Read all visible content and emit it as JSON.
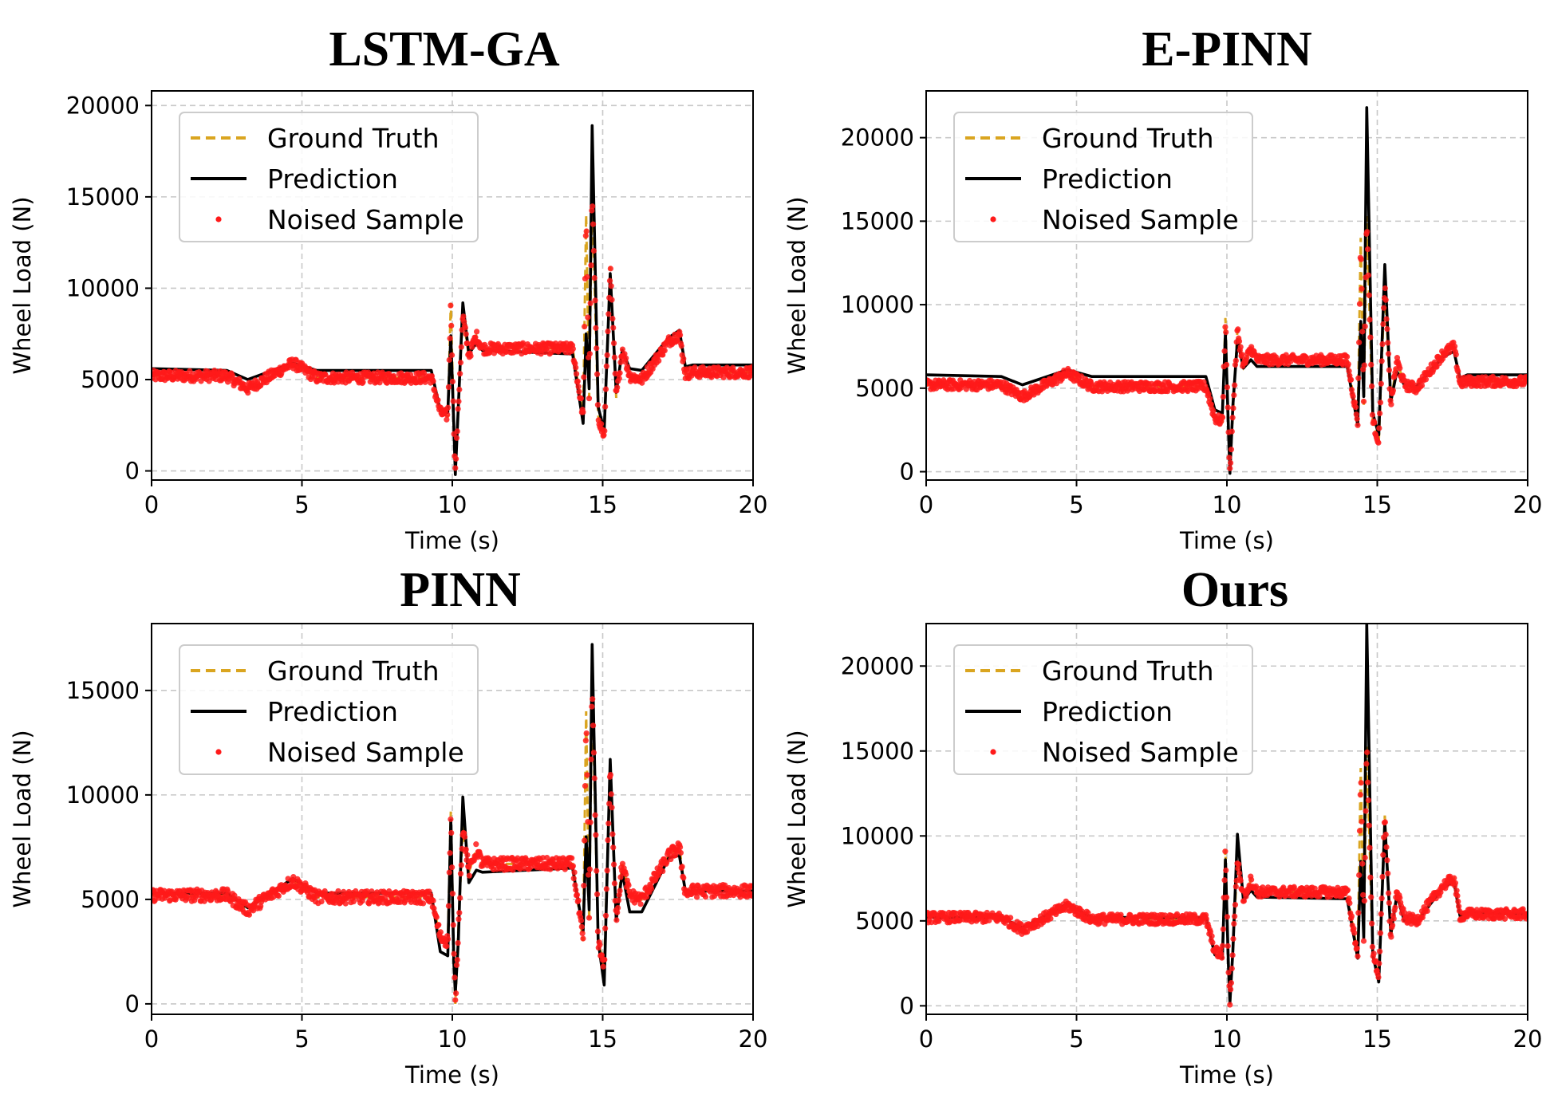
{
  "colors": {
    "ground_truth": "#DAA520",
    "prediction": "#000000",
    "noised_sample": "#FF1A1A",
    "grid": "#c8c8c8"
  },
  "chart_data": [
    {
      "type": "line",
      "title": "LSTM-GA",
      "xlabel": "Time (s)",
      "ylabel": "Wheel Load (N)",
      "xlim": [
        0,
        20
      ],
      "ylim": [
        -500,
        20800
      ],
      "xticks": [
        0,
        5,
        10,
        15,
        20
      ],
      "yticks": [
        0,
        5000,
        10000,
        15000,
        20000
      ],
      "grid": true,
      "legend": {
        "placement": "upper-left",
        "entries": [
          "Ground Truth",
          "Prediction",
          "Noised Sample"
        ]
      },
      "series": [
        {
          "name": "Ground Truth",
          "style": "dashed",
          "x": [
            0,
            2.5,
            3.2,
            4.7,
            5.5,
            9.3,
            9.6,
            9.85,
            9.95,
            10.05,
            10.1,
            10.2,
            10.35,
            10.55,
            10.8,
            11,
            14,
            14.35,
            14.45,
            14.55,
            14.65,
            14.85,
            15.05,
            15.25,
            15.45,
            15.65,
            15.9,
            16.3,
            17.2,
            17.55,
            17.75,
            18,
            20
          ],
          "y": [
            5200,
            5200,
            4500,
            5900,
            5100,
            5100,
            3200,
            3000,
            9200,
            2500,
            0,
            3500,
            8500,
            6300,
            7400,
            6700,
            6700,
            3000,
            14000,
            4000,
            15300,
            3000,
            1800,
            11200,
            4000,
            6700,
            5200,
            5000,
            7100,
            7500,
            5300,
            5400,
            5400
          ]
        },
        {
          "name": "Prediction",
          "style": "solid",
          "x": [
            0,
            2.5,
            3.2,
            4.7,
            5.5,
            9.3,
            9.6,
            9.85,
            9.95,
            10.05,
            10.1,
            10.2,
            10.35,
            10.55,
            10.8,
            11,
            14,
            14.35,
            14.45,
            14.55,
            14.65,
            14.85,
            15.05,
            15.25,
            15.45,
            15.65,
            15.9,
            16.3,
            17.2,
            17.55,
            17.75,
            18,
            20
          ],
          "y": [
            5600,
            5500,
            5000,
            5900,
            5500,
            5500,
            3300,
            3200,
            7400,
            2500,
            -200,
            3500,
            9200,
            6400,
            7000,
            6600,
            6400,
            2600,
            7500,
            4500,
            18900,
            3500,
            2200,
            10800,
            4300,
            6600,
            5600,
            5500,
            7300,
            7700,
            5700,
            5800,
            5800
          ]
        },
        {
          "name": "Noised Sample",
          "style": "scatter",
          "x": [
            0,
            2.5,
            3.2,
            4.7,
            5.5,
            9.3,
            9.6,
            9.85,
            9.95,
            10.05,
            10.1,
            10.2,
            10.35,
            10.55,
            10.8,
            11,
            14,
            14.35,
            14.45,
            14.55,
            14.65,
            14.85,
            15.05,
            15.25,
            15.45,
            15.65,
            15.9,
            16.3,
            17.2,
            17.55,
            17.75,
            18,
            20
          ],
          "y": [
            5200,
            5200,
            4500,
            5900,
            5100,
            5100,
            3200,
            3000,
            9200,
            2500,
            0,
            3500,
            8500,
            6300,
            7400,
            6700,
            6700,
            3000,
            14000,
            4000,
            15300,
            3000,
            1800,
            11200,
            4000,
            6700,
            5200,
            5000,
            7100,
            7500,
            5300,
            5400,
            5400
          ]
        }
      ]
    },
    {
      "type": "line",
      "title": "E-PINN",
      "xlabel": "Time (s)",
      "ylabel": "Wheel Load (N)",
      "xlim": [
        0,
        20
      ],
      "ylim": [
        -500,
        22800
      ],
      "xticks": [
        0,
        5,
        10,
        15,
        20
      ],
      "yticks": [
        0,
        5000,
        10000,
        15000,
        20000
      ],
      "grid": true,
      "legend": {
        "placement": "upper-left",
        "entries": [
          "Ground Truth",
          "Prediction",
          "Noised Sample"
        ]
      },
      "series": [
        {
          "name": "Ground Truth",
          "style": "dashed",
          "x": [
            0,
            2.5,
            3.2,
            4.7,
            5.5,
            9.3,
            9.6,
            9.85,
            9.95,
            10.05,
            10.1,
            10.2,
            10.35,
            10.55,
            10.8,
            11,
            14,
            14.35,
            14.45,
            14.55,
            14.65,
            14.85,
            15.05,
            15.25,
            15.45,
            15.65,
            15.9,
            16.3,
            17.2,
            17.55,
            17.75,
            18,
            20
          ],
          "y": [
            5200,
            5200,
            4500,
            5900,
            5100,
            5100,
            3200,
            3000,
            9200,
            2500,
            0,
            3500,
            8500,
            6300,
            7400,
            6700,
            6700,
            3000,
            14000,
            4000,
            15300,
            3000,
            1800,
            11200,
            4000,
            6700,
            5200,
            5000,
            7100,
            7500,
            5300,
            5400,
            5400
          ]
        },
        {
          "name": "Prediction",
          "style": "solid",
          "x": [
            0,
            2.5,
            3.2,
            4.7,
            5.5,
            9.3,
            9.6,
            9.85,
            9.95,
            10.05,
            10.1,
            10.2,
            10.35,
            10.55,
            10.8,
            11,
            14,
            14.35,
            14.45,
            14.55,
            14.65,
            14.85,
            15.05,
            15.25,
            15.45,
            15.65,
            15.9,
            16.3,
            17.2,
            17.55,
            17.75,
            18,
            20
          ],
          "y": [
            5800,
            5700,
            5200,
            6100,
            5700,
            5700,
            3700,
            3500,
            8300,
            2600,
            -100,
            4000,
            7900,
            6200,
            6700,
            6300,
            6300,
            2800,
            9000,
            4500,
            21800,
            3500,
            2200,
            12400,
            4200,
            6000,
            5200,
            5100,
            6900,
            7200,
            5600,
            5800,
            5800
          ]
        },
        {
          "name": "Noised Sample",
          "style": "scatter",
          "x": [
            0,
            2.5,
            3.2,
            4.7,
            5.5,
            9.3,
            9.6,
            9.85,
            9.95,
            10.05,
            10.1,
            10.2,
            10.35,
            10.55,
            10.8,
            11,
            14,
            14.35,
            14.45,
            14.55,
            14.65,
            14.85,
            15.05,
            15.25,
            15.45,
            15.65,
            15.9,
            16.3,
            17.2,
            17.55,
            17.75,
            18,
            20
          ],
          "y": [
            5200,
            5200,
            4500,
            5900,
            5100,
            5100,
            3200,
            3000,
            9200,
            2500,
            0,
            3500,
            8500,
            6300,
            7400,
            6700,
            6700,
            3000,
            14000,
            4000,
            15300,
            3000,
            1800,
            11200,
            4000,
            6700,
            5200,
            5000,
            7100,
            7500,
            5300,
            5400,
            5400
          ]
        }
      ]
    },
    {
      "type": "line",
      "title": "PINN",
      "xlabel": "Time (s)",
      "ylabel": "Wheel Load (N)",
      "xlim": [
        0,
        20
      ],
      "ylim": [
        -500,
        18200
      ],
      "xticks": [
        0,
        5,
        10,
        15,
        20
      ],
      "yticks": [
        0,
        5000,
        10000,
        15000
      ],
      "grid": true,
      "legend": {
        "placement": "upper-left",
        "entries": [
          "Ground Truth",
          "Prediction",
          "Noised Sample"
        ]
      },
      "series": [
        {
          "name": "Ground Truth",
          "style": "dashed",
          "x": [
            0,
            2.5,
            3.2,
            4.7,
            5.5,
            9.3,
            9.6,
            9.85,
            9.95,
            10.05,
            10.1,
            10.2,
            10.35,
            10.55,
            10.8,
            11,
            14,
            14.35,
            14.45,
            14.55,
            14.65,
            14.85,
            15.05,
            15.25,
            15.45,
            15.65,
            15.9,
            16.3,
            17.2,
            17.55,
            17.75,
            18,
            20
          ],
          "y": [
            5200,
            5200,
            4500,
            5900,
            5100,
            5100,
            3200,
            3000,
            9200,
            2500,
            0,
            3500,
            8500,
            6300,
            7400,
            6700,
            6700,
            3000,
            14000,
            4000,
            15300,
            3000,
            1800,
            11200,
            4000,
            6700,
            5200,
            5000,
            7100,
            7500,
            5300,
            5400,
            5400
          ]
        },
        {
          "name": "Prediction",
          "style": "solid",
          "x": [
            0,
            2.5,
            3.2,
            4.7,
            5.5,
            9.3,
            9.6,
            9.85,
            9.95,
            10.05,
            10.1,
            10.2,
            10.35,
            10.55,
            10.8,
            11,
            14,
            14.35,
            14.45,
            14.55,
            14.65,
            14.85,
            15.05,
            15.25,
            15.45,
            15.65,
            15.9,
            16.3,
            17.2,
            17.55,
            17.75,
            18,
            20
          ],
          "y": [
            5300,
            5300,
            4600,
            6000,
            5300,
            5300,
            2500,
            2300,
            8800,
            2000,
            500,
            3000,
            9900,
            5800,
            6400,
            6300,
            6500,
            3500,
            8000,
            4500,
            17200,
            3000,
            900,
            11700,
            4000,
            6300,
            4400,
            4400,
            7000,
            7100,
            5400,
            5400,
            5400
          ]
        },
        {
          "name": "Noised Sample",
          "style": "scatter",
          "x": [
            0,
            2.5,
            3.2,
            4.7,
            5.5,
            9.3,
            9.6,
            9.85,
            9.95,
            10.05,
            10.1,
            10.2,
            10.35,
            10.55,
            10.8,
            11,
            14,
            14.35,
            14.45,
            14.55,
            14.65,
            14.85,
            15.05,
            15.25,
            15.45,
            15.65,
            15.9,
            16.3,
            17.2,
            17.55,
            17.75,
            18,
            20
          ],
          "y": [
            5200,
            5200,
            4500,
            5900,
            5100,
            5100,
            3200,
            3000,
            9200,
            2500,
            0,
            3500,
            8500,
            6300,
            7400,
            6700,
            6700,
            3000,
            14000,
            4000,
            15300,
            3000,
            1800,
            11200,
            4000,
            6700,
            5200,
            5000,
            7100,
            7500,
            5300,
            5400,
            5400
          ]
        }
      ]
    },
    {
      "type": "line",
      "title": "Ours",
      "xlabel": "Time (s)",
      "ylabel": "Wheel Load (N)",
      "xlim": [
        0,
        20
      ],
      "ylim": [
        -500,
        22500
      ],
      "xticks": [
        0,
        5,
        10,
        15,
        20
      ],
      "yticks": [
        0,
        5000,
        10000,
        15000,
        20000
      ],
      "grid": true,
      "legend": {
        "placement": "upper-left",
        "entries": [
          "Ground Truth",
          "Prediction",
          "Noised Sample"
        ]
      },
      "series": [
        {
          "name": "Ground Truth",
          "style": "dashed",
          "x": [
            0,
            2.5,
            3.2,
            4.7,
            5.5,
            9.3,
            9.6,
            9.85,
            9.95,
            10.05,
            10.1,
            10.2,
            10.35,
            10.55,
            10.8,
            11,
            14,
            14.35,
            14.45,
            14.55,
            14.65,
            14.85,
            15.05,
            15.25,
            15.45,
            15.65,
            15.9,
            16.3,
            17.2,
            17.55,
            17.75,
            18,
            20
          ],
          "y": [
            5200,
            5200,
            4500,
            5900,
            5100,
            5100,
            3200,
            3000,
            9200,
            2500,
            0,
            3500,
            8500,
            6300,
            7400,
            6700,
            6700,
            3000,
            14000,
            4000,
            15300,
            3000,
            1800,
            11200,
            4000,
            6700,
            5200,
            5000,
            7100,
            7500,
            5300,
            5400,
            5400
          ]
        },
        {
          "name": "Prediction",
          "style": "solid",
          "x": [
            0,
            2.5,
            3.2,
            4.7,
            5.5,
            9.3,
            9.6,
            9.85,
            9.95,
            10.05,
            10.1,
            10.2,
            10.35,
            10.55,
            10.8,
            11,
            14,
            14.35,
            14.45,
            14.55,
            14.65,
            14.85,
            15.05,
            15.25,
            15.45,
            15.65,
            15.9,
            16.3,
            17.2,
            17.55,
            17.75,
            18,
            20
          ],
          "y": [
            5200,
            5200,
            4600,
            6000,
            5200,
            5200,
            3000,
            2800,
            8600,
            2400,
            200,
            3300,
            10100,
            6200,
            6800,
            6400,
            6300,
            2800,
            8500,
            4000,
            22500,
            3000,
            1400,
            10800,
            4200,
            6500,
            5000,
            4900,
            7000,
            7300,
            5300,
            5500,
            5400
          ]
        },
        {
          "name": "Noised Sample",
          "style": "scatter",
          "x": [
            0,
            2.5,
            3.2,
            4.7,
            5.5,
            9.3,
            9.6,
            9.85,
            9.95,
            10.05,
            10.1,
            10.2,
            10.35,
            10.55,
            10.8,
            11,
            14,
            14.35,
            14.45,
            14.55,
            14.65,
            14.85,
            15.05,
            15.25,
            15.45,
            15.65,
            15.9,
            16.3,
            17.2,
            17.55,
            17.75,
            18,
            20
          ],
          "y": [
            5200,
            5200,
            4500,
            5900,
            5100,
            5100,
            3200,
            3000,
            9200,
            2500,
            0,
            3500,
            8500,
            6300,
            7400,
            6700,
            6700,
            3000,
            14000,
            4000,
            15300,
            3000,
            1800,
            11200,
            4000,
            6700,
            5200,
            5000,
            7100,
            7500,
            5300,
            5400,
            5400
          ]
        }
      ]
    }
  ]
}
